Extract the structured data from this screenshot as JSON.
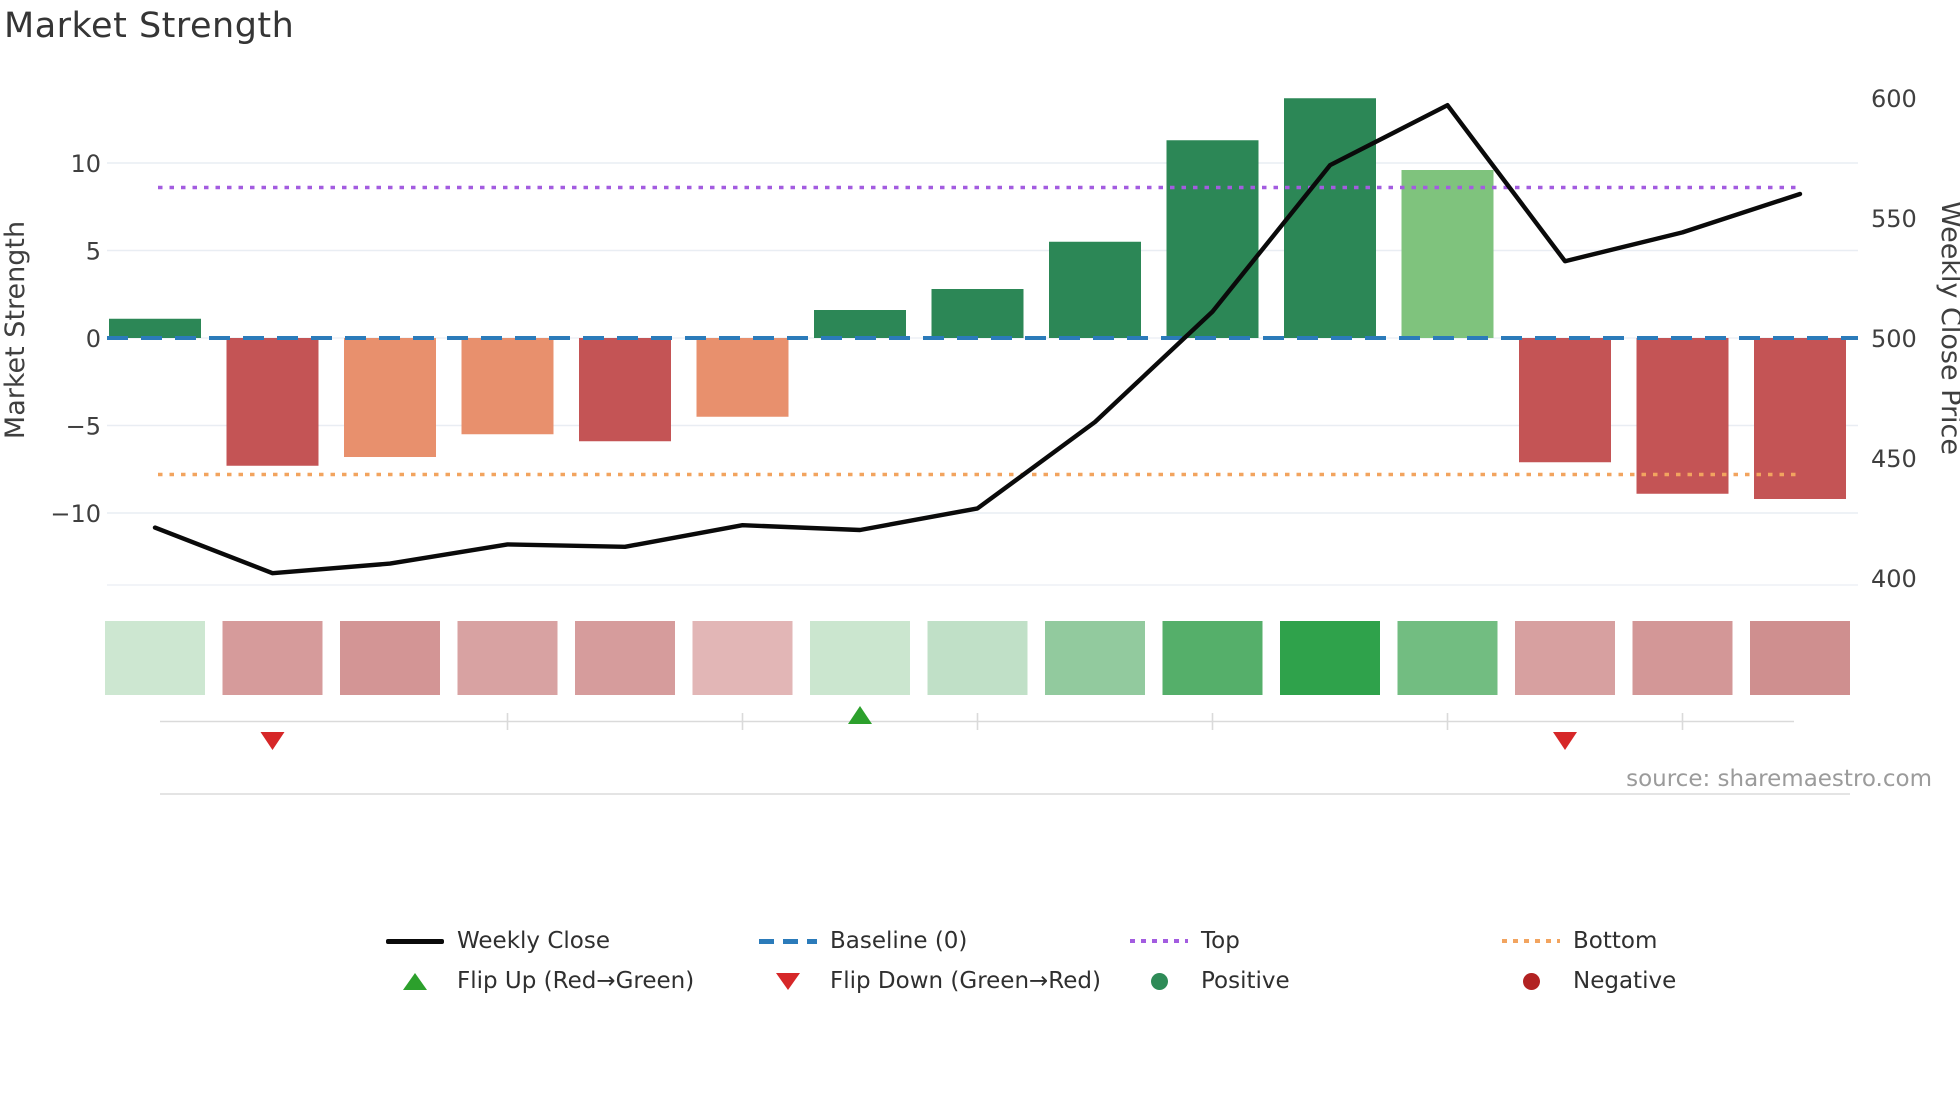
{
  "title": "Market Strength",
  "source_text": "source: sharemaestro.com",
  "legend": {
    "items": [
      {
        "label": "Weekly Close",
        "type": "line",
        "color": "#0a0a0a"
      },
      {
        "label": "Baseline (0)",
        "type": "dash",
        "color": "#2b7bba"
      },
      {
        "label": "Top",
        "type": "dot",
        "color": "#a35ce0"
      },
      {
        "label": "Bottom",
        "type": "dot",
        "color": "#f2a45f"
      },
      {
        "label": "Flip Up (Red→Green)",
        "type": "triangle-up",
        "color": "#2ca02c"
      },
      {
        "label": "Flip Down (Green→Red)",
        "type": "triangle-down",
        "color": "#d62728"
      },
      {
        "label": "Positive",
        "type": "circle",
        "color": "#2e8b57"
      },
      {
        "label": "Negative",
        "type": "circle",
        "color": "#b22222"
      }
    ]
  },
  "chart_data": {
    "type": "bar",
    "subtype": "bar+line combo with heatmap strip and flip markers",
    "title": "Market Strength",
    "weeks": 15,
    "bars": {
      "name": "Market Strength",
      "values": [
        1.1,
        -7.3,
        -6.8,
        -5.5,
        -5.9,
        -4.5,
        1.6,
        2.8,
        5.5,
        11.3,
        13.7,
        9.6,
        -7.1,
        -8.9,
        -9.2
      ],
      "colors": [
        "#2c8756",
        "#c45455",
        "#e8906d",
        "#e8906d",
        "#c45455",
        "#e8906d",
        "#2c8756",
        "#2c8756",
        "#2c8756",
        "#2c8756",
        "#2c8756",
        "#7fc37d",
        "#c45455",
        "#c45455",
        "#c45455"
      ]
    },
    "line": {
      "name": "Weekly Close",
      "axis": "right",
      "color": "#0a0a0a",
      "values": [
        421,
        402,
        406,
        414,
        413,
        422,
        420,
        429,
        465,
        511,
        572,
        597,
        532,
        544,
        560
      ]
    },
    "baseline": {
      "name": "Baseline (0)",
      "value": 0,
      "color": "#2b7bba",
      "style": "dashed"
    },
    "top": {
      "name": "Top",
      "value": 8.6,
      "color": "#a35ce0",
      "style": "dotted"
    },
    "bottom": {
      "name": "Bottom",
      "value": -7.8,
      "color": "#f2a45f",
      "style": "dotted"
    },
    "heatmap_row": {
      "colors": [
        "#cde7d1",
        "#d69b9b",
        "#d39595",
        "#d8a2a2",
        "#d69c9c",
        "#e2b6b6",
        "#cbe6cf",
        "#c0e0c7",
        "#92ca9e",
        "#55af6a",
        "#2fa24b",
        "#72bd81",
        "#d7a0a0",
        "#d39797",
        "#cf8f8f"
      ]
    },
    "flip_markers": [
      {
        "week": 2,
        "direction": "down",
        "color": "#d62728"
      },
      {
        "week": 7,
        "direction": "up",
        "color": "#2ca02c"
      },
      {
        "week": 13,
        "direction": "down",
        "color": "#d62728"
      }
    ],
    "axes": {
      "left": {
        "title": "Market Strength",
        "ticks": [
          10,
          5,
          0,
          -5,
          -10
        ],
        "grid": true
      },
      "right": {
        "title": "Weekly Close Price",
        "ticks": [
          600,
          550,
          500,
          450,
          400
        ],
        "grid": false
      }
    },
    "minor_axis_tick_weeks": [
      4,
      6,
      8,
      10,
      12,
      14
    ],
    "legend_position": "bottom",
    "x_tick_labels": []
  }
}
